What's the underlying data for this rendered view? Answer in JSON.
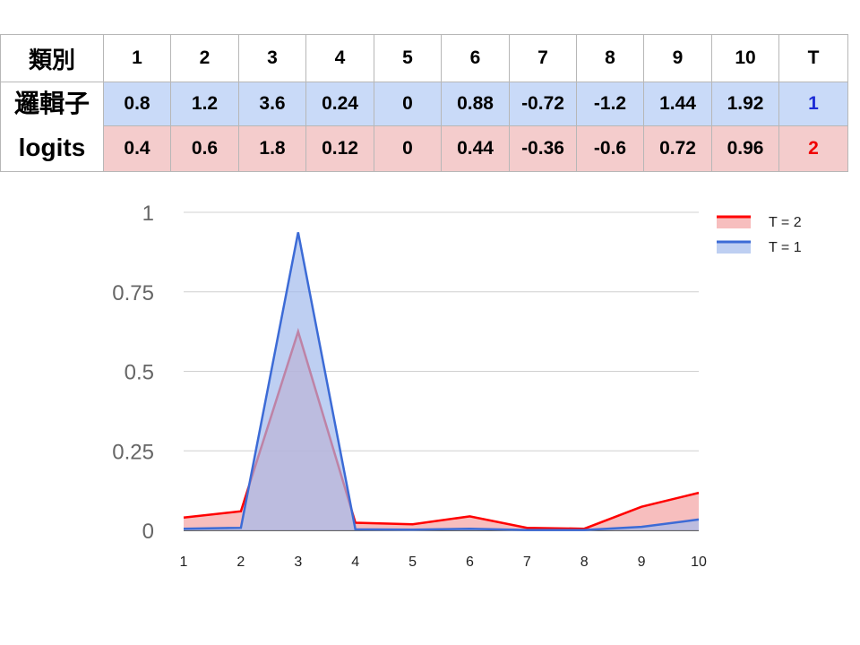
{
  "table": {
    "header_label": "類別",
    "header_cells": [
      "1",
      "2",
      "3",
      "4",
      "5",
      "6",
      "7",
      "8",
      "9",
      "10",
      "T"
    ],
    "row_label_line1": "邏輯子",
    "row_label_line2": "logits",
    "rows": [
      {
        "values": [
          "0.8",
          "1.2",
          "3.6",
          "0.24",
          "0",
          "0.88",
          "-0.72",
          "-1.2",
          "1.44",
          "1.92"
        ],
        "t": "1",
        "color": "#c9daf8",
        "t_color": "#1c2bd6"
      },
      {
        "values": [
          "0.4",
          "0.6",
          "1.8",
          "0.12",
          "0",
          "0.44",
          "-0.36",
          "-0.6",
          "0.72",
          "0.96"
        ],
        "t": "2",
        "color": "#f4cccc",
        "t_color": "#f00000"
      }
    ]
  },
  "chart_data": {
    "type": "area",
    "title": "",
    "xlabel": "",
    "ylabel": "",
    "x": [
      "1",
      "2",
      "3",
      "4",
      "5",
      "6",
      "7",
      "8",
      "9",
      "10"
    ],
    "ylim": [
      0,
      1
    ],
    "y_ticks": [
      "0",
      "0.25",
      "0.5",
      "0.75",
      "1"
    ],
    "grid": true,
    "legend_position": "top-right",
    "series": [
      {
        "name": "T = 2",
        "color": "#ff0000",
        "fill": "#f4a3a3",
        "values": [
          0.04,
          0.06,
          0.625,
          0.024,
          0.019,
          0.044,
          0.008,
          0.005,
          0.074,
          0.118
        ]
      },
      {
        "name": "T = 1",
        "color": "#3c6bd6",
        "fill": "#a3bbed",
        "values": [
          0.005,
          0.008,
          0.937,
          0.003,
          0.002,
          0.005,
          0.001,
          0.001,
          0.011,
          0.034
        ]
      }
    ]
  }
}
